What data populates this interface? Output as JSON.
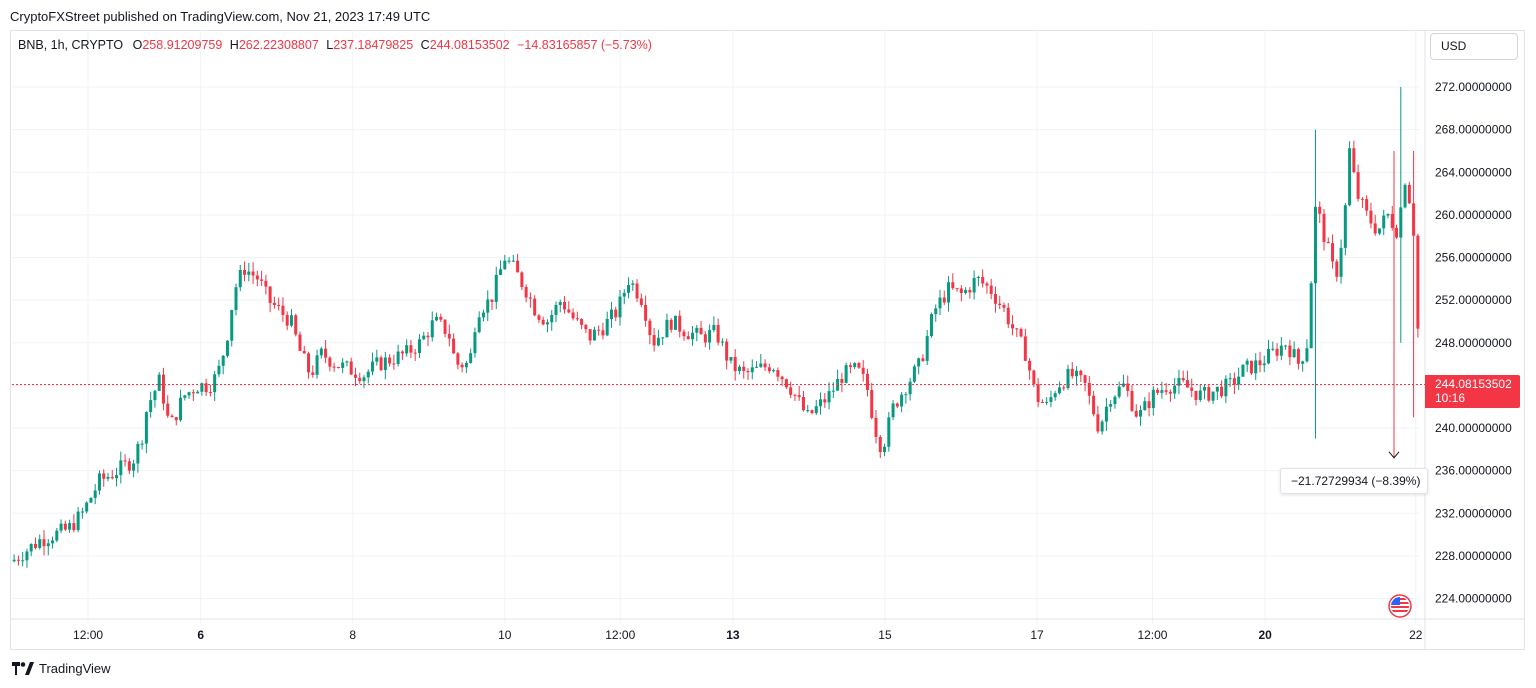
{
  "publisher_line": "CryptoFXStreet published on TradingView.com, Nov 21, 2023 17:49 UTC",
  "legend": {
    "symbol": "BNB, 1h, CRYPTO",
    "o_label": "O",
    "o_value": "258.91209759",
    "h_label": "H",
    "h_value": "262.22308807",
    "l_label": "L",
    "l_value": "237.18479825",
    "c_label": "C",
    "c_value": "244.08153502",
    "change": "−14.83165857 (−5.73%)"
  },
  "currency_button": "USD",
  "last_price": {
    "price": "244.08153502",
    "countdown": "10:16"
  },
  "measure": {
    "label": "−21.72729934 (−8.39%)"
  },
  "footer": {
    "brand": "TradingView"
  },
  "colors": {
    "up": "#089981",
    "down": "#f23645",
    "grid": "#f0f3fa",
    "text": "#131722"
  },
  "chart_data": {
    "type": "candlestick",
    "y_ticks": [
      "272.00000000",
      "268.00000000",
      "264.00000000",
      "260.00000000",
      "256.00000000",
      "252.00000000",
      "248.00000000",
      "244.00000000",
      "240.00000000",
      "236.00000000",
      "232.00000000",
      "228.00000000",
      "224.00000000"
    ],
    "y_tick_values": [
      272,
      268,
      264,
      260,
      256,
      252,
      248,
      244,
      240,
      236,
      232,
      228,
      224
    ],
    "x_ticks": [
      {
        "label": "12:00",
        "bold": false,
        "t": 0.054
      },
      {
        "label": "6",
        "bold": true,
        "t": 0.134
      },
      {
        "label": "8",
        "bold": false,
        "t": 0.242
      },
      {
        "label": "10",
        "bold": false,
        "t": 0.35
      },
      {
        "label": "12:00",
        "bold": false,
        "t": 0.432
      },
      {
        "label": "13",
        "bold": true,
        "t": 0.512
      },
      {
        "label": "15",
        "bold": false,
        "t": 0.62
      },
      {
        "label": "17",
        "bold": false,
        "t": 0.728
      },
      {
        "label": "12:00",
        "bold": false,
        "t": 0.81
      },
      {
        "label": "20",
        "bold": true,
        "t": 0.89
      },
      {
        "label": "22",
        "bold": false,
        "t": 0.997
      }
    ],
    "ylim": [
      221,
      275
    ],
    "last_price": 244.08,
    "grid": true,
    "waypoints": [
      [
        0.0,
        227.5
      ],
      [
        0.02,
        229.5
      ],
      [
        0.04,
        230.5
      ],
      [
        0.05,
        232
      ],
      [
        0.062,
        235
      ],
      [
        0.075,
        236
      ],
      [
        0.086,
        237
      ],
      [
        0.092,
        239
      ],
      [
        0.096,
        242
      ],
      [
        0.105,
        244.5
      ],
      [
        0.112,
        240
      ],
      [
        0.122,
        243
      ],
      [
        0.132,
        244
      ],
      [
        0.14,
        244
      ],
      [
        0.146,
        245
      ],
      [
        0.152,
        248
      ],
      [
        0.158,
        253
      ],
      [
        0.165,
        255
      ],
      [
        0.175,
        254
      ],
      [
        0.182,
        252
      ],
      [
        0.19,
        251
      ],
      [
        0.198,
        250
      ],
      [
        0.205,
        247
      ],
      [
        0.212,
        245
      ],
      [
        0.22,
        247
      ],
      [
        0.23,
        246
      ],
      [
        0.24,
        245.5
      ],
      [
        0.25,
        245
      ],
      [
        0.26,
        246
      ],
      [
        0.27,
        246.5
      ],
      [
        0.28,
        247
      ],
      [
        0.29,
        248
      ],
      [
        0.3,
        250
      ],
      [
        0.31,
        249
      ],
      [
        0.315,
        246
      ],
      [
        0.325,
        246
      ],
      [
        0.33,
        251
      ],
      [
        0.34,
        252
      ],
      [
        0.35,
        256
      ],
      [
        0.356,
        255
      ],
      [
        0.365,
        253
      ],
      [
        0.372,
        251
      ],
      [
        0.38,
        250
      ],
      [
        0.39,
        252
      ],
      [
        0.4,
        250
      ],
      [
        0.41,
        248.5
      ],
      [
        0.42,
        249.5
      ],
      [
        0.43,
        251
      ],
      [
        0.438,
        254
      ],
      [
        0.448,
        252
      ],
      [
        0.455,
        248
      ],
      [
        0.468,
        250
      ],
      [
        0.48,
        249
      ],
      [
        0.49,
        248.5
      ],
      [
        0.5,
        249
      ],
      [
        0.51,
        246
      ],
      [
        0.52,
        245
      ],
      [
        0.53,
        245.5
      ],
      [
        0.54,
        246
      ],
      [
        0.552,
        244
      ],
      [
        0.565,
        241
      ],
      [
        0.58,
        243
      ],
      [
        0.59,
        245
      ],
      [
        0.6,
        245.5
      ],
      [
        0.607,
        244
      ],
      [
        0.613,
        240
      ],
      [
        0.618,
        238
      ],
      [
        0.626,
        242
      ],
      [
        0.635,
        244
      ],
      [
        0.645,
        246
      ],
      [
        0.655,
        251
      ],
      [
        0.665,
        253
      ],
      [
        0.675,
        252.5
      ],
      [
        0.685,
        254
      ],
      [
        0.695,
        253
      ],
      [
        0.705,
        251
      ],
      [
        0.712,
        249
      ],
      [
        0.72,
        247
      ],
      [
        0.727,
        243
      ],
      [
        0.735,
        242
      ],
      [
        0.742,
        244
      ],
      [
        0.752,
        245
      ],
      [
        0.762,
        244
      ],
      [
        0.772,
        240
      ],
      [
        0.78,
        243
      ],
      [
        0.79,
        244
      ],
      [
        0.8,
        241
      ],
      [
        0.81,
        243
      ],
      [
        0.82,
        244
      ],
      [
        0.832,
        244
      ],
      [
        0.845,
        243
      ],
      [
        0.855,
        243.5
      ],
      [
        0.865,
        244
      ],
      [
        0.875,
        245.5
      ],
      [
        0.885,
        246
      ],
      [
        0.895,
        247
      ],
      [
        0.905,
        248
      ],
      [
        0.914,
        246
      ],
      [
        0.92,
        248
      ],
      [
        0.926,
        261
      ],
      [
        0.932,
        258
      ],
      [
        0.94,
        254
      ],
      [
        0.946,
        259
      ],
      [
        0.95,
        266
      ],
      [
        0.955,
        262
      ],
      [
        0.962,
        260
      ],
      [
        0.97,
        258.5
      ],
      [
        0.977,
        260
      ],
      [
        0.984,
        258.5
      ],
      [
        0.99,
        264
      ],
      [
        0.996,
        258
      ],
      [
        1.0,
        244
      ]
    ],
    "spikes": [
      {
        "t": 0.926,
        "high": 268,
        "low": 239
      },
      {
        "t": 0.986,
        "high": 272,
        "low": 248
      },
      {
        "t": 0.996,
        "high": 266,
        "low": 241
      }
    ]
  }
}
